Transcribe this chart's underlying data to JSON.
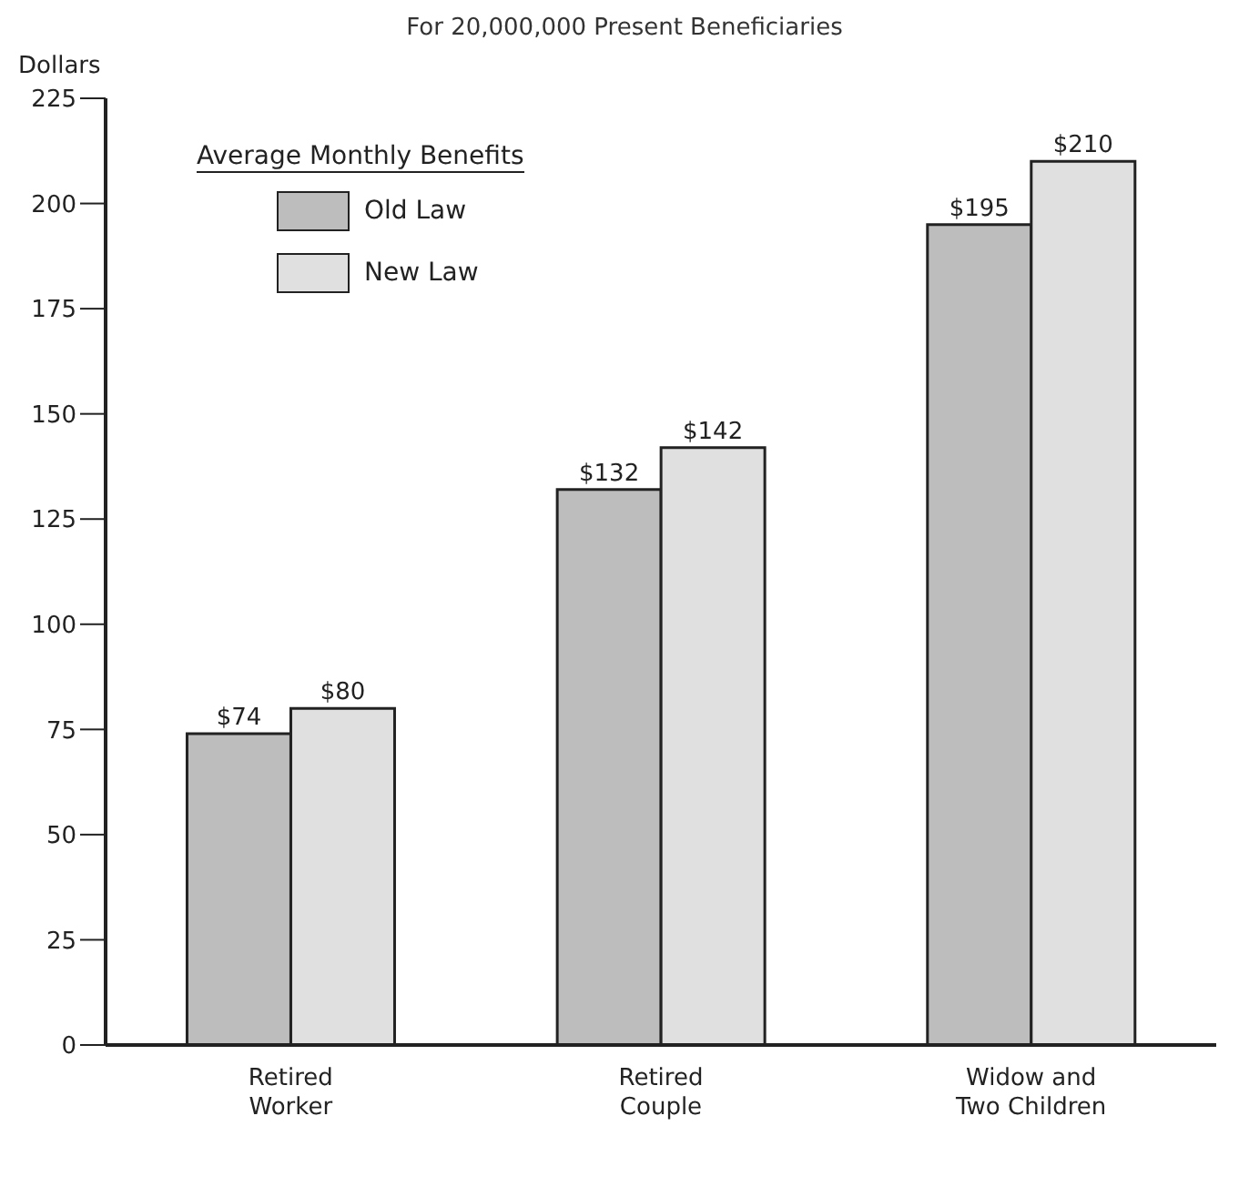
{
  "chart_data": {
    "type": "bar",
    "title": "For 20,000,000 Present Beneficiaries",
    "ylabel": "Dollars",
    "legend_title": "Average Monthly Benefits",
    "categories": [
      "Retired Worker",
      "Retired Couple",
      "Widow and Two Children"
    ],
    "series": [
      {
        "name": "Old Law",
        "color": "#bdbdbd",
        "values": [
          74,
          132,
          195
        ],
        "value_labels": [
          "$74",
          "$132",
          "$195"
        ]
      },
      {
        "name": "New Law",
        "color": "#e0e0e0",
        "values": [
          80,
          142,
          210
        ],
        "value_labels": [
          "$80",
          "$142",
          "$210"
        ]
      }
    ],
    "ylim": [
      0,
      225
    ],
    "yticks": [
      0,
      25,
      50,
      75,
      100,
      125,
      150,
      175,
      200,
      225
    ],
    "grid": false,
    "legend": "top left"
  }
}
